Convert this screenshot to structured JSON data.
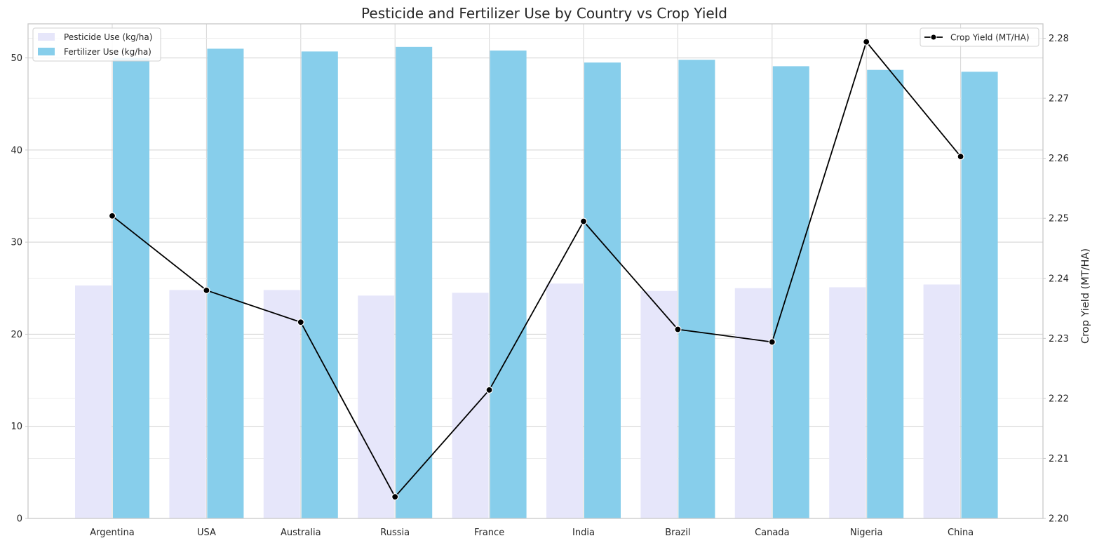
{
  "chart_data": {
    "type": "bar",
    "title": "Pesticide and Fertilizer Use by Country vs Crop Yield",
    "xlabel": "",
    "ylabel": "",
    "y2label": "Crop Yield (MT/HA)",
    "categories": [
      "Argentina",
      "USA",
      "Australia",
      "Russia",
      "France",
      "India",
      "Brazil",
      "Canada",
      "Nigeria",
      "China"
    ],
    "series": [
      {
        "name": "Pesticide Use (kg/ha)",
        "kind": "bar",
        "axis": "left",
        "color": "#e6e6fa",
        "values": [
          25.3,
          24.8,
          24.8,
          24.2,
          24.5,
          25.5,
          24.7,
          25.0,
          25.1,
          25.4
        ]
      },
      {
        "name": "Fertilizer Use (kg/ha)",
        "kind": "bar",
        "axis": "left",
        "color": "#87ceeb",
        "values": [
          50.0,
          51.0,
          50.7,
          51.2,
          50.8,
          49.5,
          49.8,
          49.1,
          48.7,
          48.5
        ]
      },
      {
        "name": "Crop Yield (MT/HA)",
        "kind": "line",
        "axis": "right",
        "color": "#000000",
        "values": [
          2.2504,
          2.238,
          2.2327,
          2.2036,
          2.2214,
          2.2495,
          2.2315,
          2.2294,
          2.2794,
          2.2603
        ]
      }
    ],
    "ylim": [
      0,
      53.7
    ],
    "y2lim": [
      2.2,
      2.2824
    ],
    "yticks": [
      0,
      10,
      20,
      30,
      40,
      50
    ],
    "y2ticks": [
      "2.20",
      "2.21",
      "2.22",
      "2.23",
      "2.24",
      "2.25",
      "2.26",
      "2.27",
      "2.28"
    ],
    "grid": true,
    "legend_left_placement": "top-left",
    "legend_right_placement": "top-right"
  }
}
